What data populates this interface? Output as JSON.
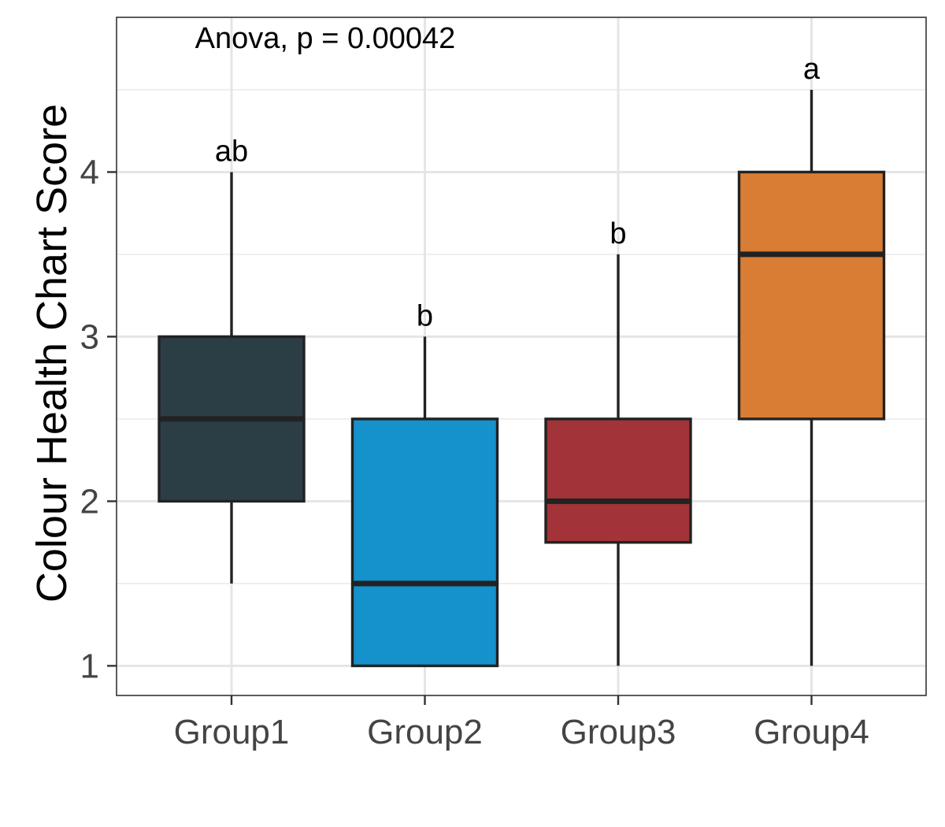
{
  "chart_data": {
    "type": "boxplot",
    "title": "",
    "xlabel": "",
    "ylabel": "Colour Health Chart Score",
    "ylim": [
      0.82,
      4.94
    ],
    "yticks": [
      1,
      2,
      3,
      4
    ],
    "grid": true,
    "legend": "none",
    "annotation": "Anova, p = 0.00042",
    "categories": [
      "Group1",
      "Group2",
      "Group3",
      "Group4"
    ],
    "boxes": [
      {
        "group": "Group1",
        "whisker_low": 1.5,
        "q1": 2.0,
        "median": 2.5,
        "q3": 3.0,
        "whisker_high": 4.0,
        "letter": "ab",
        "color": "#2c3e45"
      },
      {
        "group": "Group2",
        "whisker_low": 1.0,
        "q1": 1.0,
        "median": 1.5,
        "q3": 2.5,
        "whisker_high": 3.0,
        "letter": "b",
        "color": "#1591cb"
      },
      {
        "group": "Group3",
        "whisker_low": 1.0,
        "q1": 1.75,
        "median": 2.0,
        "q3": 2.5,
        "whisker_high": 3.5,
        "letter": "b",
        "color": "#a23338"
      },
      {
        "group": "Group4",
        "whisker_low": 1.0,
        "q1": 2.5,
        "median": 3.5,
        "q3": 4.0,
        "whisker_high": 4.5,
        "letter": "a",
        "color": "#d97d35"
      }
    ]
  }
}
